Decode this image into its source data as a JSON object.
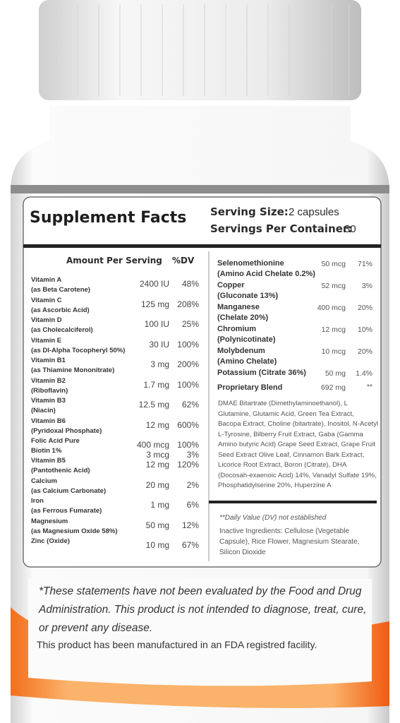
{
  "label": {
    "title": "Supplement Facts",
    "serving_size": {
      "label": "Serving Size:",
      "value": "2 capsules"
    },
    "servings_per_container": {
      "label": "Servings Per Container:",
      "value": "30"
    },
    "left_header": {
      "amount": "Amount Per Serving",
      "dv": "%DV"
    },
    "left_rows": [
      {
        "name": "Vitamin A",
        "detail": "(as Beta Carotene)",
        "amount": "2400 IU",
        "dv": "48%"
      },
      {
        "name": "Vitamin C",
        "detail": "(as Ascorbic Acid)",
        "amount": "125 mg",
        "dv": "208%"
      },
      {
        "name": "Vitamin D",
        "detail": "(as Cholecalciferol)",
        "amount": "100 IU",
        "dv": "25%"
      },
      {
        "name": "Vitamin E",
        "detail": "(as Dl-Alpha Tocopheryl 50%)",
        "amount": "30 IU",
        "dv": "100%"
      },
      {
        "name": "Vitamin B1",
        "detail": "(as Thiamine Mononitrate)",
        "amount": "3 mg",
        "dv": "200%"
      },
      {
        "name": "Vitamin B2",
        "detail": "(Riboflavin)",
        "amount": "1.7 mg",
        "dv": "100%"
      },
      {
        "name": "Vitamin B3",
        "detail": "(Niacin)",
        "amount": "12.5 mg",
        "dv": "62%"
      },
      {
        "name": "Vitamin B6",
        "detail": "(Pyridoxal Phosphate)",
        "amount": "12 mg",
        "dv": "600%"
      },
      {
        "name": "Folic Acid Pure",
        "amount": "400 mcg",
        "dv": "100%"
      },
      {
        "name": "Biotin 1%",
        "amount": "3 mcg",
        "dv": "3%"
      },
      {
        "name": "Vitamin B5",
        "detail": "(Pantothenic Acid)",
        "amount": "12 mg",
        "dv": "120%"
      },
      {
        "name": "Calcium",
        "detail": "(as Calcium Carbonate)",
        "amount": "20 mg",
        "dv": "2%"
      },
      {
        "name": "Iron",
        "detail": "(as Ferrous Fumarate)",
        "amount": "1 mg",
        "dv": "6%"
      },
      {
        "name": "Magnesium",
        "detail": "(as Magnesium Oxide 58%)",
        "amount": "50 mg",
        "dv": "12%"
      },
      {
        "name": "Zinc (Oxide)",
        "amount": "10 mg",
        "dv": "67%"
      }
    ],
    "right_rows": [
      {
        "name": "Selenomethionine",
        "detail": "(Amino Acid Chelate 0.2%)",
        "amount": "50 mcg",
        "dv": "71%"
      },
      {
        "name": "Copper",
        "detail": "(Gluconate 13%)",
        "amount": "52 mcg",
        "dv": "3%"
      },
      {
        "name": "Manganese",
        "detail": "(Chelate 20%)",
        "amount": "400 mcg",
        "dv": "20%"
      },
      {
        "name": "Chromium",
        "detail": "(Polynicotinate)",
        "amount": "12 mcg",
        "dv": "10%"
      },
      {
        "name": "Molybdenum",
        "detail": "(Amino Chelate)",
        "amount": "10 mcg",
        "dv": "20%"
      },
      {
        "name": "Potassium (Citrate 36%)",
        "amount": "50 mg",
        "dv": "1.4%"
      }
    ],
    "blend": {
      "name": "Proprietary Blend",
      "amount": "692 mg",
      "dv": "**",
      "ingredients": "DMAE Bitartrate (Dimethylaminoethanol), L Glutamine, Glutamic Acid, Green Tea Extract, Bacopa Extract, Choline (bitartrate), Inositol, N-Acetyl L-Tyrosine, Bilberry Fruit Extract, Gaba (Gamma Amino butyric Acid) Grape Seed Extract, Grape Fruit Seed Extract Olive Leaf, Cinnamon Bark Extract, Licorice Root Extract, Boron (Citrate), DHA (Docosah-exaenoic Acid) 14%, Vanadyl Sulfate 19%, Phosphatidylserine 20%, Huperzine A"
    },
    "footnote": "**Daily Value (DV) not established",
    "inactive": "Inactive Ingredients: Cellulose (Vegetable Capsule), Rice Flower, Magnesium Stearate, Silicon Dioxide"
  },
  "disclaimer": "*These statements have not been evaluated by the Food and Drug Administration. This product is not intended to diagnose, treat, cure, or prevent any disease.",
  "facility": "This product has been manufactured in an FDA registred facility."
}
